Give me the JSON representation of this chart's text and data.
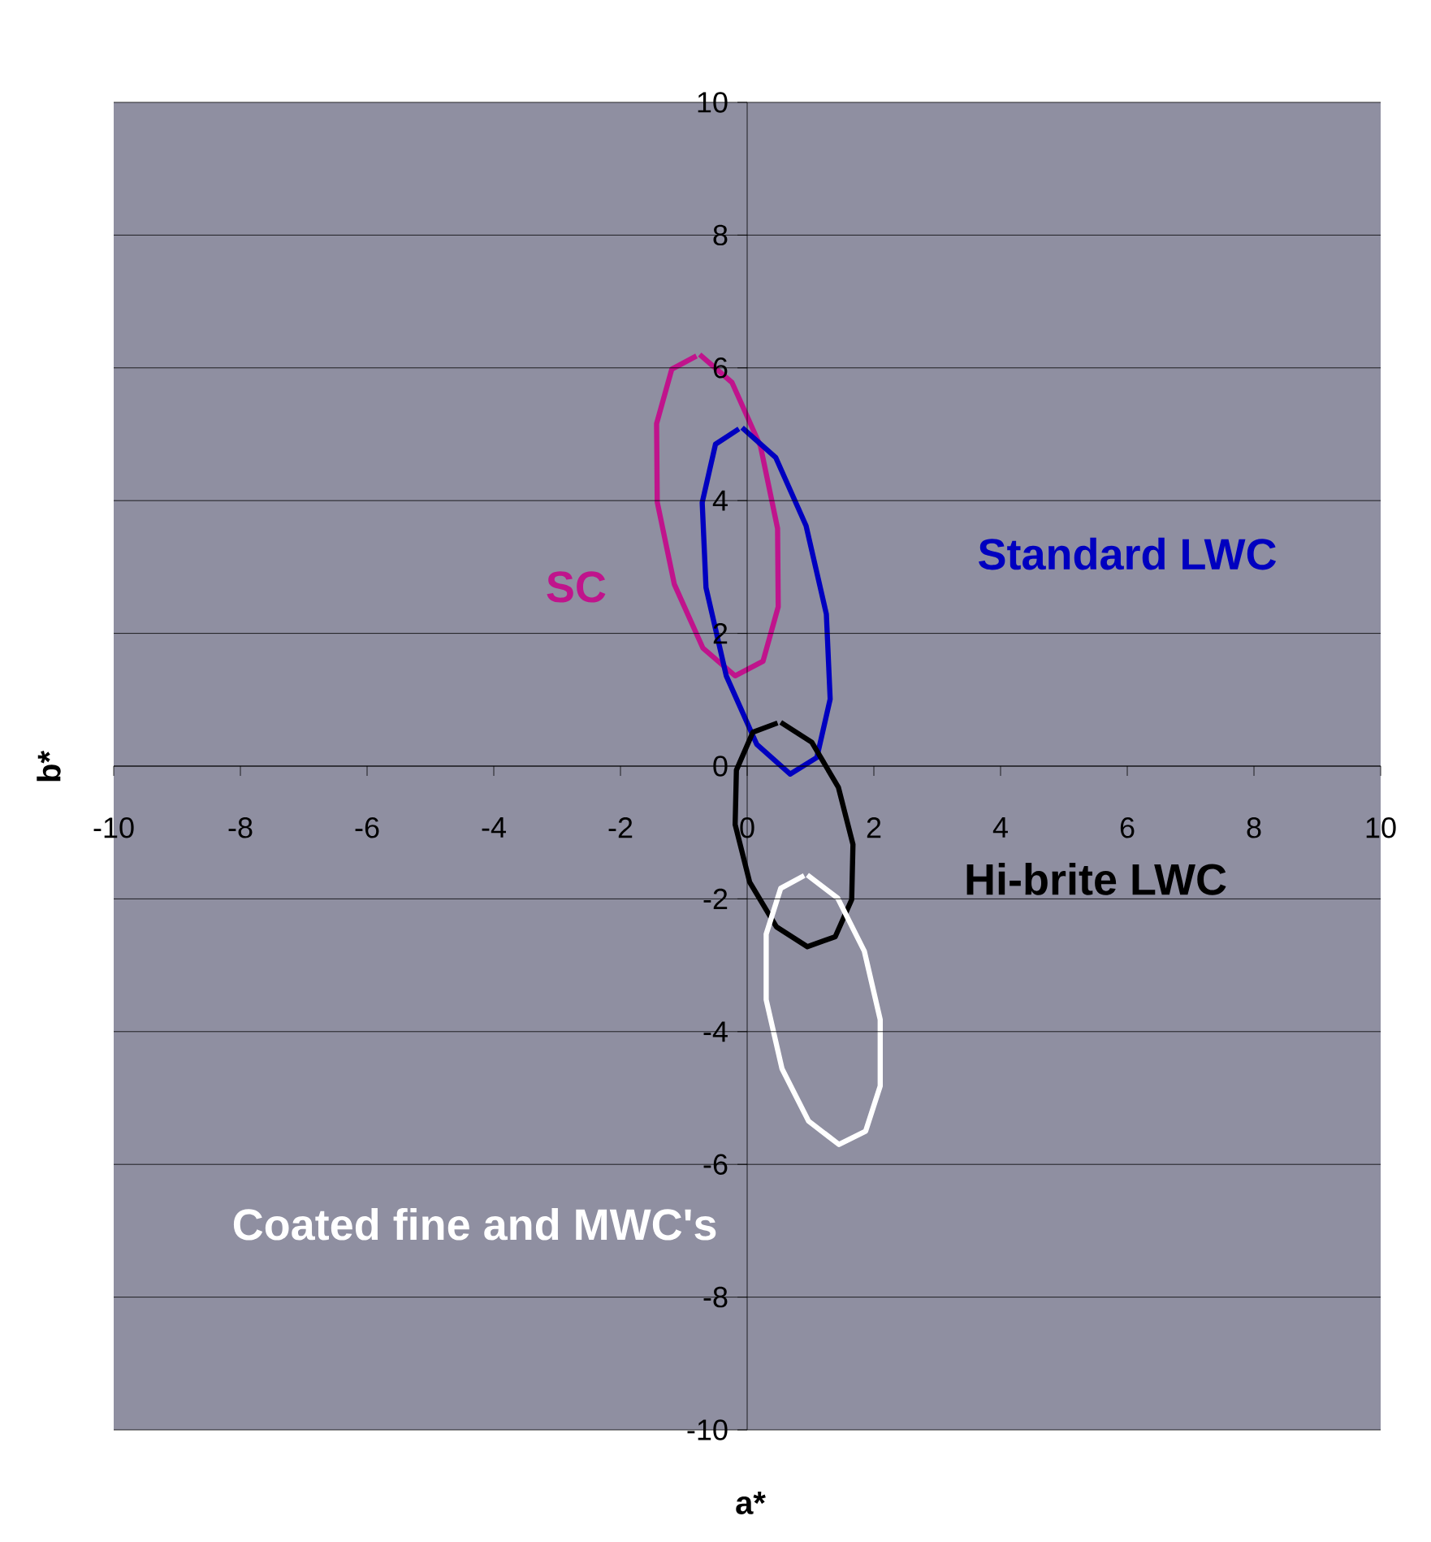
{
  "chart_data": {
    "type": "line",
    "xlabel": "a*",
    "ylabel": "b*",
    "xlim": [
      -10,
      10
    ],
    "ylim": [
      -10,
      10
    ],
    "xticks": [
      -10,
      -8,
      -6,
      -4,
      -2,
      0,
      2,
      4,
      6,
      8,
      10
    ],
    "yticks": [
      -10,
      -8,
      -6,
      -4,
      -2,
      0,
      2,
      4,
      6,
      8,
      10
    ],
    "grid": "y",
    "marker": "none",
    "line_style": "solid",
    "series": [
      {
        "name": "SC",
        "color": "#c0148c",
        "x": [
          -0.75,
          -0.24,
          0.21,
          0.48,
          0.49,
          0.25,
          -0.19,
          -0.7,
          -1.15,
          -1.42,
          -1.43,
          -1.19,
          -0.8
        ],
        "values": [
          6.2,
          5.78,
          4.82,
          3.58,
          2.4,
          1.58,
          1.36,
          1.78,
          2.74,
          3.98,
          5.16,
          5.98,
          6.18
        ]
      },
      {
        "name": "Standard LWC",
        "color": "#0000c0",
        "x": [
          -0.08,
          0.45,
          0.93,
          1.25,
          1.31,
          1.1,
          0.68,
          0.15,
          -0.33,
          -0.65,
          -0.71,
          -0.5,
          -0.13
        ],
        "values": [
          5.1,
          4.65,
          3.62,
          2.29,
          1.01,
          0.13,
          -0.12,
          0.33,
          1.36,
          2.69,
          3.97,
          4.85,
          5.08
        ]
      },
      {
        "name": "Hi-brite LWC",
        "color": "#000000",
        "x": [
          0.53,
          1.02,
          1.44,
          1.67,
          1.65,
          1.39,
          0.95,
          0.46,
          0.04,
          -0.19,
          -0.17,
          0.09,
          0.48
        ],
        "values": [
          0.66,
          0.36,
          -0.32,
          -1.18,
          -2.01,
          -2.57,
          -2.72,
          -2.42,
          -1.75,
          -0.88,
          -0.06,
          0.51,
          0.65
        ]
      },
      {
        "name": "Coated fine and MWC's",
        "color": "#ffffff",
        "x": [
          0.95,
          1.43,
          1.85,
          2.1,
          2.1,
          1.87,
          1.45,
          0.97,
          0.55,
          0.3,
          0.3,
          0.53,
          0.9
        ],
        "values": [
          -1.64,
          -1.99,
          -2.79,
          -3.82,
          -4.82,
          -5.5,
          -5.7,
          -5.35,
          -4.56,
          -3.52,
          -2.53,
          -1.84,
          -1.65
        ]
      }
    ]
  }
}
